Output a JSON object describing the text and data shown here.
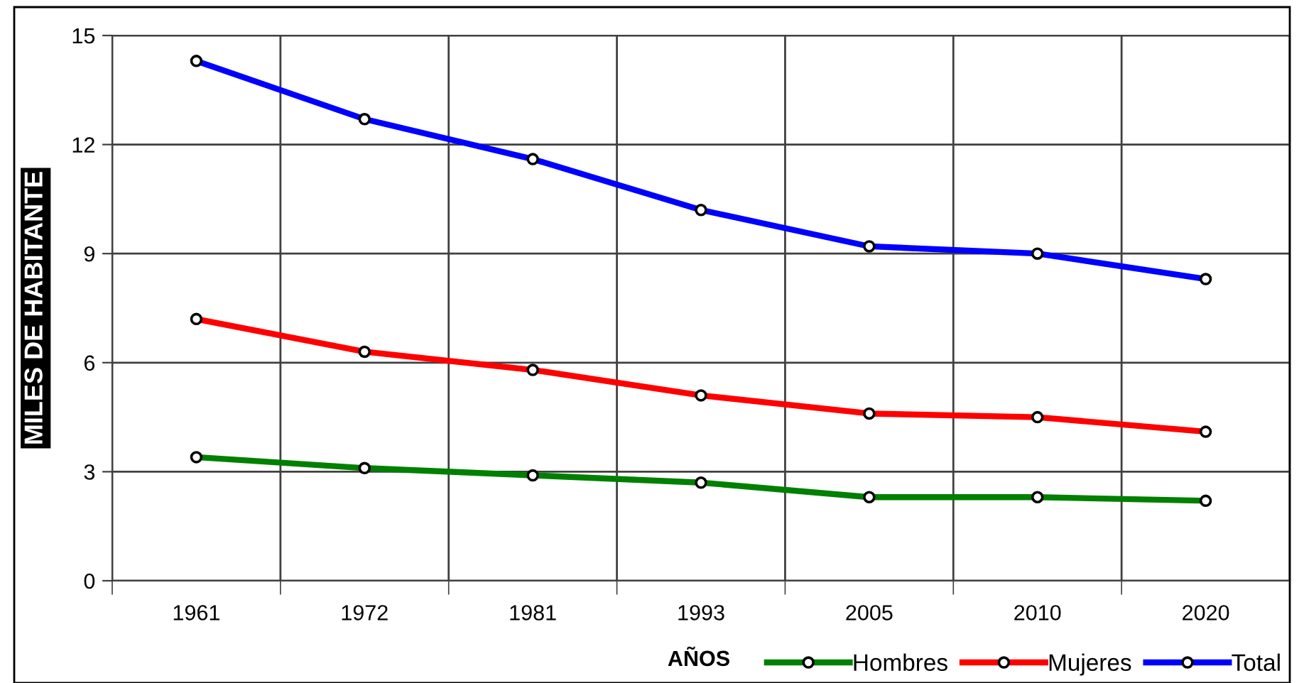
{
  "chart_data": {
    "type": "line",
    "xlabel": "AÑOS",
    "ylabel": "MILES DE HABITANTE",
    "categories": [
      "1961",
      "1972",
      "1981",
      "1993",
      "2005",
      "2010",
      "2020"
    ],
    "series": [
      {
        "name": "Hombres",
        "color": "#008000",
        "values": [
          3.4,
          3.1,
          2.9,
          2.7,
          2.3,
          2.3,
          2.2
        ]
      },
      {
        "name": "Mujeres",
        "color": "#ff0000",
        "values": [
          7.2,
          6.3,
          5.8,
          5.1,
          4.6,
          4.5,
          4.1
        ]
      },
      {
        "name": "Total",
        "color": "#0000ff",
        "values": [
          14.3,
          12.7,
          11.6,
          10.2,
          9.2,
          9.0,
          8.3
        ]
      }
    ],
    "ylim": [
      0,
      15
    ],
    "yticks": [
      0,
      3,
      6,
      9,
      12,
      15
    ],
    "grid": true,
    "legend": "bottom right",
    "marker": "circle",
    "line_style": "solid"
  }
}
